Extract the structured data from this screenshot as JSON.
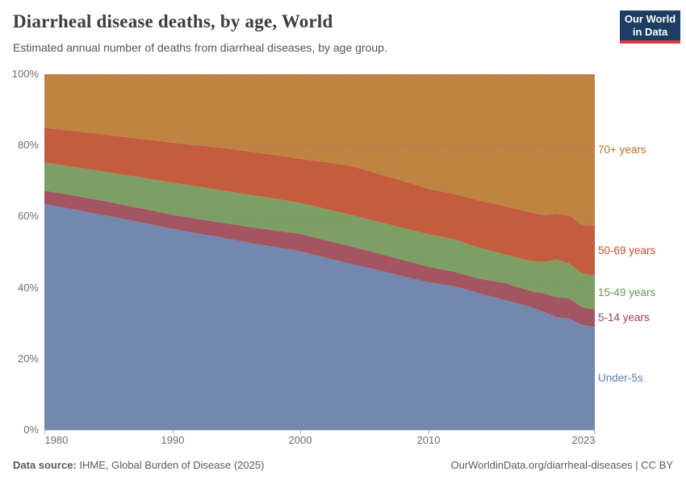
{
  "header": {
    "title": "Diarrheal disease deaths, by age, World",
    "subtitle": "Estimated annual number of deaths from diarrheal diseases, by age group.",
    "logo": {
      "line1": "Our World",
      "line2": "in Data",
      "bg_color": "#1d3d63",
      "stripe_color": "#d73a3f"
    }
  },
  "chart_data": {
    "type": "area",
    "stacking": "percent",
    "title": "Diarrheal disease deaths, by age, World",
    "xlabel": "",
    "ylabel": "",
    "ylim": [
      0,
      100
    ],
    "grid": true,
    "legend_position": "right",
    "x": [
      1980,
      1982,
      1984,
      1986,
      1988,
      1990,
      1992,
      1994,
      1996,
      1998,
      2000,
      2002,
      2004,
      2006,
      2008,
      2010,
      2012,
      2014,
      2016,
      2018,
      2019,
      2020,
      2021,
      2022,
      2023
    ],
    "series": [
      {
        "name": "Under-5s",
        "color": "#7288ae",
        "label_color": "#5b7cb0",
        "values": [
          63.5,
          62.2,
          60.8,
          59.4,
          58.0,
          56.5,
          55.2,
          54.0,
          52.6,
          51.4,
          50.2,
          48.4,
          46.6,
          45.0,
          43.2,
          41.5,
          40.4,
          38.4,
          36.5,
          34.5,
          33.2,
          31.7,
          31.3,
          29.5,
          29.0
        ]
      },
      {
        "name": "5-14 years",
        "color": "#a35562",
        "label_color": "#a23e56",
        "values": [
          3.8,
          3.9,
          4.0,
          4.0,
          4.0,
          4.0,
          4.1,
          4.2,
          4.5,
          4.7,
          4.9,
          4.9,
          5.0,
          4.7,
          4.6,
          4.4,
          4.1,
          4.1,
          4.8,
          4.5,
          5.3,
          5.6,
          5.7,
          5.0,
          4.9
        ]
      },
      {
        "name": "15-49 years",
        "color": "#7d9e64",
        "label_color": "#68975c",
        "values": [
          7.9,
          8.0,
          8.2,
          8.4,
          8.7,
          9.0,
          9.1,
          9.1,
          9.0,
          8.9,
          8.7,
          8.8,
          8.8,
          8.9,
          9.0,
          9.1,
          9.1,
          8.7,
          8.0,
          8.5,
          8.7,
          10.6,
          9.8,
          9.5,
          9.5
        ]
      },
      {
        "name": "50-69 years",
        "color": "#c45c3e",
        "label_color": "#c2502e",
        "values": [
          9.8,
          10.1,
          10.4,
          10.7,
          11.0,
          11.3,
          11.6,
          12.0,
          12.2,
          12.3,
          12.4,
          13.2,
          13.8,
          13.5,
          13.2,
          12.8,
          12.8,
          13.3,
          13.6,
          13.7,
          13.2,
          12.9,
          13.6,
          13.6,
          14.0
        ]
      },
      {
        "name": "70+ years",
        "color": "#bf8342",
        "label_color": "#b9702a",
        "values": [
          15.0,
          15.8,
          16.6,
          17.5,
          18.3,
          19.2,
          20.0,
          20.7,
          21.7,
          22.7,
          23.8,
          24.7,
          25.8,
          27.9,
          30.0,
          32.2,
          33.6,
          35.5,
          37.1,
          38.8,
          39.6,
          39.2,
          39.6,
          42.4,
          42.6
        ]
      }
    ],
    "y_tick_labels": [
      "0%",
      "20%",
      "40%",
      "60%",
      "80%",
      "100%"
    ],
    "x_tick_labels": [
      "1980",
      "1990",
      "2000",
      "2010",
      "2023"
    ],
    "x_tick_years": [
      1980,
      1990,
      2000,
      2010,
      2023
    ],
    "gridlines_pct": [
      20,
      40,
      60,
      80,
      100
    ]
  },
  "footer": {
    "source_label": "Data source:",
    "source_value": " IHME, Global Burden of Disease (2025)",
    "credit_link": "OurWorldinData.org/diarrheal-diseases",
    "credit_suffix": " | CC BY"
  }
}
